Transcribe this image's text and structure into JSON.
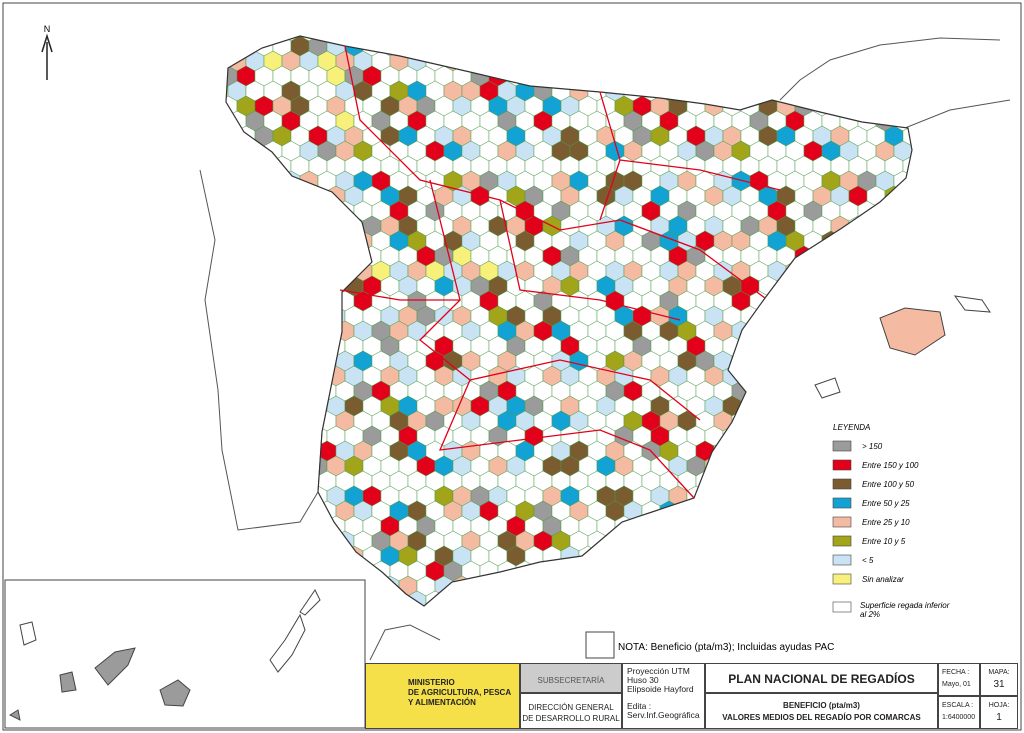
{
  "map": {
    "north": "N"
  },
  "legend": {
    "title": "LEYENDA",
    "items": [
      {
        "label": "> 150",
        "color": "#9b9b9b"
      },
      {
        "label": "Entre 150 y 100",
        "color": "#e2001a"
      },
      {
        "label": "Entre 100 y 50",
        "color": "#7b5b30"
      },
      {
        "label": "Entre 50 y 25",
        "color": "#13a2d4"
      },
      {
        "label": "Entre 25 y 10",
        "color": "#f4bba2"
      },
      {
        "label": "Entre 10 y 5",
        "color": "#a2a419"
      },
      {
        "label": "< 5",
        "color": "#c9e2f4"
      },
      {
        "label": "Sin analizar",
        "color": "#f7f17c"
      },
      {
        "label": "Superficie regada inferior al 2%",
        "color": "#ffffff"
      }
    ]
  },
  "note": "NOTA: Beneficio (pta/m3); Incluidas ayudas PAC",
  "title_block": {
    "ministry": [
      "MINISTERIO",
      "DE AGRICULTURA, PESCA",
      "Y ALIMENTACIÓN"
    ],
    "subsecretaria": "SUBSECRETARÍA",
    "direccion": [
      "DIRECCIÓN GENERAL",
      "DE DESARROLLO RURAL"
    ],
    "projection": [
      "Proyección UTM",
      "Huso 30",
      "Elipsoide Hayford"
    ],
    "edita": [
      "Edita :",
      "Serv.Inf.Geográfica"
    ],
    "title": "PLAN NACIONAL DE REGADÍOS",
    "subtitle": [
      "BENEFICIO (pta/m3)",
      "VALORES MEDIOS DEL REGADÍO POR COMARCAS"
    ],
    "fecha_label": "FECHA :",
    "fecha": "Mayo, 01",
    "escala_label": "ESCALA :",
    "escala": "1:6400000",
    "mapa_label": "MAPA:",
    "mapa": "31",
    "hoja_label": "HOJA:",
    "hoja": "1"
  }
}
